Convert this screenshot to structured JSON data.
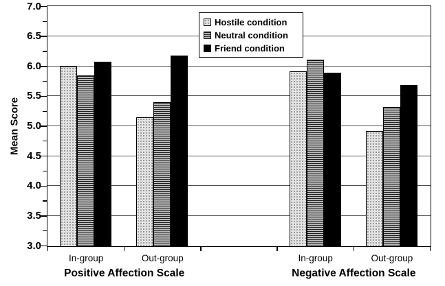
{
  "chart_data": {
    "type": "bar",
    "title": "",
    "ylabel": "Mean Score",
    "ylim": [
      3.0,
      7.0
    ],
    "ytick_labels": [
      "7.0",
      "6.5",
      "6.0",
      "5.5",
      "5.0",
      "4.5",
      "4.0",
      "3.5",
      "3.0"
    ],
    "ytick_minor_step": 0.25,
    "gridline_step": 0.5,
    "grid": true,
    "categories": [
      "In-group",
      "Out-group",
      "In-group",
      "Out-group"
    ],
    "axis_groups": [
      {
        "label": "Positive Affection Scale",
        "category_indexes": [
          0,
          1
        ]
      },
      {
        "label": "Negative Affection Scale",
        "category_indexes": [
          2,
          3
        ]
      }
    ],
    "series": [
      {
        "name": "Hostile condition",
        "pattern": "stipple-light-gray",
        "values": [
          6.0,
          5.15,
          5.92,
          4.92
        ]
      },
      {
        "name": "Neutral condition",
        "pattern": "horizontal-lines-gray",
        "values": [
          5.85,
          5.41,
          6.12,
          5.33
        ]
      },
      {
        "name": "Friend condition",
        "pattern": "solid-black",
        "values": [
          6.08,
          6.19,
          5.9,
          5.69
        ]
      }
    ],
    "legend_position": "top-center",
    "layout": {
      "x_segments": 5,
      "group_segment_slots": [
        0,
        1,
        3,
        4
      ]
    },
    "colors": {
      "bar_border": "#000000",
      "solid_black_fill": "#000000",
      "stipple_light_gray_fill": "#e3e3e3",
      "horizontal_lines_gray_fill": "#b5b5b5",
      "gridline": "#4d4d4d",
      "axis": "#000000",
      "text": "#000000",
      "background": "#ffffff"
    }
  }
}
